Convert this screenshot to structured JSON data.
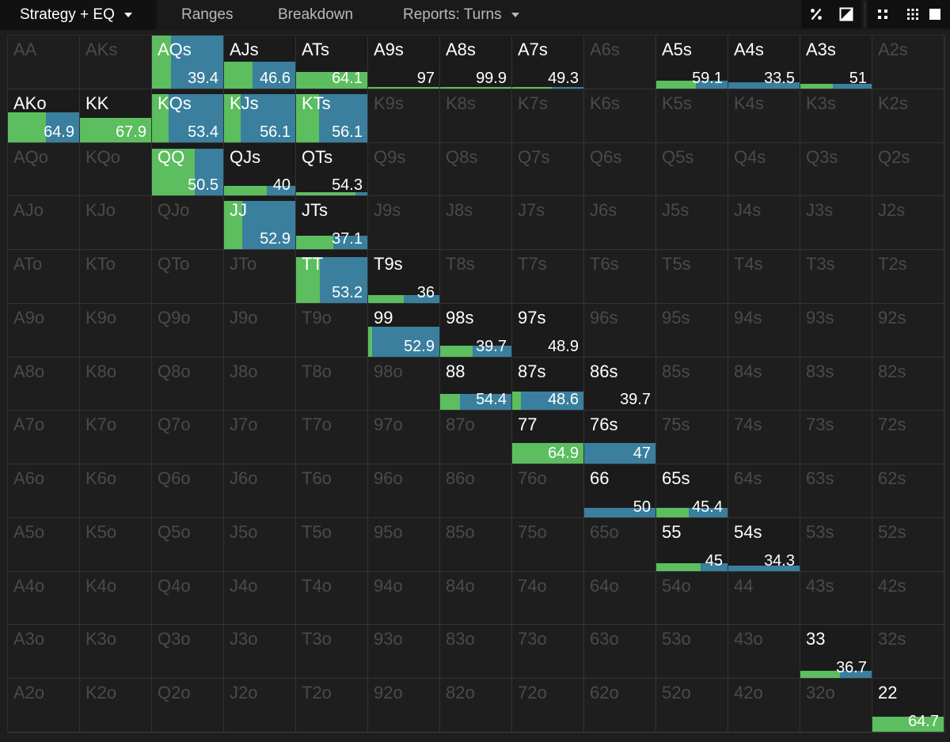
{
  "tabs": [
    {
      "label": "Strategy + EQ",
      "active": true,
      "dropdown": true
    },
    {
      "label": "Ranges",
      "active": false,
      "dropdown": false
    },
    {
      "label": "Breakdown",
      "active": false,
      "dropdown": false
    },
    {
      "label": "Reports: Turns",
      "active": false,
      "dropdown": true
    }
  ],
  "toolbar_icons": [
    "percent-icon",
    "contrast-icon",
    "compact-icon",
    "grid-dots-icon",
    "square-icon"
  ],
  "colors": {
    "green": "#5cbe5e",
    "blue": "#3a7f9d",
    "inactive_text": "#4a4a4a",
    "active_text": "#ffffff"
  },
  "matrix": {
    "ranks": [
      "A",
      "K",
      "Q",
      "J",
      "T",
      "9",
      "8",
      "7",
      "6",
      "5",
      "4",
      "3",
      "2"
    ],
    "rows": [
      [
        "AA",
        "AKs",
        "AQs",
        "AJs",
        "ATs",
        "A9s",
        "A8s",
        "A7s",
        "A6s",
        "A5s",
        "A4s",
        "A3s",
        "A2s"
      ],
      [
        "AKo",
        "KK",
        "KQs",
        "KJs",
        "KTs",
        "K9s",
        "K8s",
        "K7s",
        "K6s",
        "K5s",
        "K4s",
        "K3s",
        "K2s"
      ],
      [
        "AQo",
        "KQo",
        "QQ",
        "QJs",
        "QTs",
        "Q9s",
        "Q8s",
        "Q7s",
        "Q6s",
        "Q5s",
        "Q4s",
        "Q3s",
        "Q2s"
      ],
      [
        "AJo",
        "KJo",
        "QJo",
        "JJ",
        "JTs",
        "J9s",
        "J8s",
        "J7s",
        "J6s",
        "J5s",
        "J4s",
        "J3s",
        "J2s"
      ],
      [
        "ATo",
        "KTo",
        "QTo",
        "JTo",
        "TT",
        "T9s",
        "T8s",
        "T7s",
        "T6s",
        "T5s",
        "T4s",
        "T3s",
        "T2s"
      ],
      [
        "A9o",
        "K9o",
        "Q9o",
        "J9o",
        "T9o",
        "99",
        "98s",
        "97s",
        "96s",
        "95s",
        "94s",
        "93s",
        "92s"
      ],
      [
        "A8o",
        "K8o",
        "Q8o",
        "J8o",
        "T8o",
        "98o",
        "88",
        "87s",
        "86s",
        "85s",
        "84s",
        "83s",
        "82s"
      ],
      [
        "A7o",
        "K7o",
        "Q7o",
        "J7o",
        "T7o",
        "97o",
        "87o",
        "77",
        "76s",
        "75s",
        "74s",
        "73s",
        "72s"
      ],
      [
        "A6o",
        "K6o",
        "Q6o",
        "J6o",
        "T6o",
        "96o",
        "86o",
        "76o",
        "66",
        "65s",
        "64s",
        "63s",
        "62s"
      ],
      [
        "A5o",
        "K5o",
        "Q5o",
        "J5o",
        "T5o",
        "95o",
        "85o",
        "75o",
        "65o",
        "55",
        "54s",
        "53s",
        "52s"
      ],
      [
        "A4o",
        "K4o",
        "Q4o",
        "J4o",
        "T4o",
        "94o",
        "84o",
        "74o",
        "64o",
        "54o",
        "44",
        "43s",
        "42s"
      ],
      [
        "A3o",
        "K3o",
        "Q3o",
        "J3o",
        "T3o",
        "93o",
        "83o",
        "73o",
        "63o",
        "53o",
        "43o",
        "33",
        "32s"
      ],
      [
        "A2o",
        "K2o",
        "Q2o",
        "J2o",
        "T2o",
        "92o",
        "82o",
        "72o",
        "62o",
        "52o",
        "42o",
        "32o",
        "22"
      ]
    ]
  },
  "hands": {
    "AQs": {
      "eq": "39.4",
      "frequency": 1.0,
      "green_share": 0.27
    },
    "AJs": {
      "eq": "46.6",
      "frequency": 0.5,
      "green_share": 0.4
    },
    "ATs": {
      "eq": "64.1",
      "frequency": 0.3,
      "green_share": 1.0
    },
    "A9s": {
      "eq": "97",
      "frequency": 0.03,
      "green_share": 1.0
    },
    "A8s": {
      "eq": "99.9",
      "frequency": 0.03,
      "green_share": 1.0
    },
    "A7s": {
      "eq": "49.3",
      "frequency": 0.03,
      "green_share": 0.55
    },
    "A5s": {
      "eq": "59.1",
      "frequency": 0.15,
      "green_share": 0.55
    },
    "A4s": {
      "eq": "33.5",
      "frequency": 0.12,
      "green_share": 0.0
    },
    "A3s": {
      "eq": "51",
      "frequency": 0.08,
      "green_share": 0.45
    },
    "AKo": {
      "eq": "64.9",
      "frequency": 0.55,
      "green_share": 0.53
    },
    "KK": {
      "eq": "67.9",
      "frequency": 0.45,
      "green_share": 1.0
    },
    "KQs": {
      "eq": "53.4",
      "frequency": 0.9,
      "green_share": 0.23
    },
    "KJs": {
      "eq": "56.1",
      "frequency": 0.9,
      "green_share": 0.23
    },
    "KTs": {
      "eq": "56.1",
      "frequency": 0.9,
      "green_share": 0.32
    },
    "QQ": {
      "eq": "50.5",
      "frequency": 0.88,
      "green_share": 0.6
    },
    "QJs": {
      "eq": "40",
      "frequency": 0.18,
      "green_share": 0.6
    },
    "QTs": {
      "eq": "54.3",
      "frequency": 0.06,
      "green_share": 0.83
    },
    "JJ": {
      "eq": "52.9",
      "frequency": 0.9,
      "green_share": 0.25
    },
    "JTs": {
      "eq": "37.1",
      "frequency": 0.25,
      "green_share": 0.52
    },
    "TT": {
      "eq": "53.2",
      "frequency": 0.85,
      "green_share": 0.33
    },
    "T9s": {
      "eq": "36",
      "frequency": 0.15,
      "green_share": 0.5
    },
    "99": {
      "eq": "52.9",
      "frequency": 0.55,
      "green_share": 0.05
    },
    "98s": {
      "eq": "39.7",
      "frequency": 0.2,
      "green_share": 0.45
    },
    "97s": {
      "eq": "48.9",
      "frequency": 0.0,
      "green_share": 0.0
    },
    "88": {
      "eq": "54.4",
      "frequency": 0.3,
      "green_share": 0.28
    },
    "87s": {
      "eq": "48.6",
      "frequency": 0.35,
      "green_share": 0.12
    },
    "86s": {
      "eq": "39.7",
      "frequency": 0.0,
      "green_share": 0.0
    },
    "77": {
      "eq": "64.9",
      "frequency": 0.38,
      "green_share": 1.0
    },
    "76s": {
      "eq": "47",
      "frequency": 0.38,
      "green_share": 0.0
    },
    "66": {
      "eq": "50",
      "frequency": 0.18,
      "green_share": 0.0
    },
    "65s": {
      "eq": "45.4",
      "frequency": 0.18,
      "green_share": 0.45
    },
    "55": {
      "eq": "45",
      "frequency": 0.15,
      "green_share": 0.62
    },
    "54s": {
      "eq": "34.3",
      "frequency": 0.1,
      "green_share": 0.0
    },
    "33": {
      "eq": "36.7",
      "frequency": 0.14,
      "green_share": 0.55
    },
    "22": {
      "eq": "64.7",
      "frequency": 0.28,
      "green_share": 1.0
    }
  }
}
